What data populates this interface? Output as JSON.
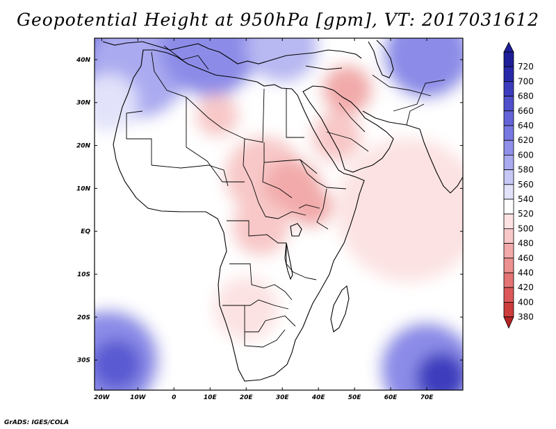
{
  "title": "Geopotential Height at 950hPa [gpm], VT: 2017031612",
  "credit": "GrADS: IGES/COLA",
  "map": {
    "lon_range": [
      -22,
      80
    ],
    "lat_range": [
      -37,
      45
    ],
    "x_ticks": [
      {
        "value": -20,
        "label": "20W"
      },
      {
        "value": -10,
        "label": "10W"
      },
      {
        "value": 0,
        "label": "0"
      },
      {
        "value": 10,
        "label": "10E"
      },
      {
        "value": 20,
        "label": "20E"
      },
      {
        "value": 30,
        "label": "30E"
      },
      {
        "value": 40,
        "label": "40E"
      },
      {
        "value": 50,
        "label": "50E"
      },
      {
        "value": 60,
        "label": "60E"
      },
      {
        "value": 70,
        "label": "70E"
      }
    ],
    "y_ticks": [
      {
        "value": 40,
        "label": "40N"
      },
      {
        "value": 30,
        "label": "30N"
      },
      {
        "value": 20,
        "label": "20N"
      },
      {
        "value": 10,
        "label": "10N"
      },
      {
        "value": 0,
        "label": "EQ"
      },
      {
        "value": -10,
        "label": "10S"
      },
      {
        "value": -20,
        "label": "20S"
      },
      {
        "value": -30,
        "label": "30S"
      }
    ],
    "colorbar": [
      {
        "value": "720",
        "color": "#1e1e98"
      },
      {
        "value": "700",
        "color": "#2828aa"
      },
      {
        "value": "680",
        "color": "#3c3cbe"
      },
      {
        "value": "660",
        "color": "#5050cc"
      },
      {
        "value": "640",
        "color": "#6464d8"
      },
      {
        "value": "620",
        "color": "#7878e2"
      },
      {
        "value": "600",
        "color": "#9090ea"
      },
      {
        "value": "580",
        "color": "#aaaaf0"
      },
      {
        "value": "560",
        "color": "#c8c8f6"
      },
      {
        "value": "540",
        "color": "#e2e2fa"
      },
      {
        "value": "520",
        "color": "#ffffff"
      },
      {
        "value": "500",
        "color": "#fce2e2"
      },
      {
        "value": "480",
        "color": "#f8c8c8"
      },
      {
        "value": "460",
        "color": "#f2aaaa"
      },
      {
        "value": "440",
        "color": "#ec9090"
      },
      {
        "value": "420",
        "color": "#e47474"
      },
      {
        "value": "400",
        "color": "#dc5858"
      },
      {
        "value": "380",
        "color": "#cc3c3c"
      }
    ],
    "colorbar_low_color": "#b42222",
    "field_blobs": [
      {
        "lon": -18,
        "lat": 41,
        "r": 10,
        "color": "#6464d8"
      },
      {
        "lon": -10,
        "lat": 38,
        "r": 14,
        "color": "#aaaaf0"
      },
      {
        "lon": 10,
        "lat": 43,
        "r": 14,
        "color": "#8c8ce8"
      },
      {
        "lon": 30,
        "lat": 43,
        "r": 10,
        "color": "#b8b8f2"
      },
      {
        "lon": 70,
        "lat": 41,
        "r": 12,
        "color": "#8c8ce8"
      },
      {
        "lon": -18,
        "lat": 30,
        "r": 8,
        "color": "#e2e2fa"
      },
      {
        "lon": 12,
        "lat": 27,
        "r": 6,
        "color": "#f8c8c8"
      },
      {
        "lon": 48,
        "lat": 33,
        "r": 7,
        "color": "#f2aaaa"
      },
      {
        "lon": 45,
        "lat": 22,
        "r": 7,
        "color": "#f8c8c8"
      },
      {
        "lon": 25,
        "lat": 13,
        "r": 11,
        "color": "#f8c8c8"
      },
      {
        "lon": 33,
        "lat": 10,
        "r": 8,
        "color": "#f2aaaa"
      },
      {
        "lon": 38,
        "lat": 6,
        "r": 6,
        "color": "#f2aaaa"
      },
      {
        "lon": 24,
        "lat": 1,
        "r": 8,
        "color": "#f8c8c8"
      },
      {
        "lon": 20,
        "lat": -18,
        "r": 9,
        "color": "#fce2e2"
      },
      {
        "lon": 65,
        "lat": 5,
        "r": 20,
        "color": "#fce2e2"
      },
      {
        "lon": -15,
        "lat": -7,
        "r": 9,
        "color": "#ffffff"
      },
      {
        "lon": -18,
        "lat": -30,
        "r": 14,
        "color": "#8c8ce8"
      },
      {
        "lon": -16,
        "lat": -31,
        "r": 7,
        "color": "#5a5ad2"
      },
      {
        "lon": 70,
        "lat": -32,
        "r": 13,
        "color": "#8c8ce8"
      },
      {
        "lon": 74,
        "lat": -34,
        "r": 7,
        "color": "#3c3cbe"
      }
    ]
  }
}
